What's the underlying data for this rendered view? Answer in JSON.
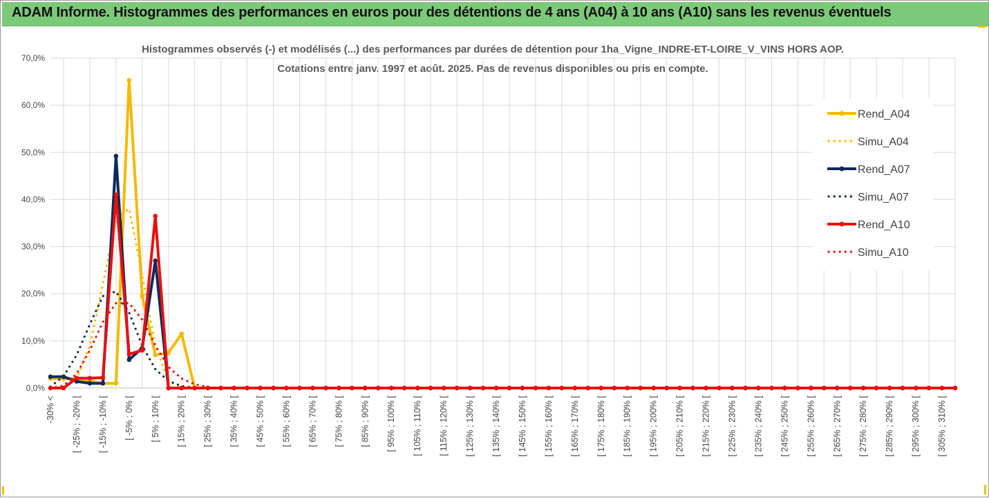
{
  "banner": {
    "title": "ADAM Informe. Histogrammes des performances en euros pour des détentions de 4 ans (A04) à 10 ans (A10) sans les revenus éventuels"
  },
  "colors": {
    "banner": "#7dc97a",
    "A04": "#f5b800",
    "A07": "#0d2a5c",
    "A10": "#e8100f",
    "grid": "#d9d9d9"
  },
  "chart_data": {
    "type": "line",
    "title": "Histogrammes observés (-) et modélisés (...) des performances par durées de détention pour 1ha_Vigne_INDRE-ET-LOIRE_V_VINS HORS AOP.",
    "subtitle": "Cotations entre janv. 1997 et août. 2025. Pas de revenus disponibles ou pris en compte.",
    "ylim": [
      0,
      70
    ],
    "y_tick_values": [
      0,
      10,
      20,
      30,
      40,
      50,
      60,
      70
    ],
    "y_tick_labels": [
      "0,0%",
      "10,0%",
      "20,0%",
      "30,0%",
      "40,0%",
      "50,0%",
      "60,0%",
      "70,0%"
    ],
    "grid": true,
    "legend_position": "right",
    "x_tick_labels": [
      "-30% <",
      "[ -25% ; -20% [",
      "[ -15% ; -10% [",
      "[ -5% ; 0% [",
      "[ 5% ; 10% [",
      "[ 15% ; 20% [",
      "[ 25% ; 30% [",
      "[ 35% ; 40% [",
      "[ 45% ; 50% [",
      "[ 55% ; 60% [",
      "[ 65% ; 70% [",
      "[ 75% ; 80% [",
      "[ 85% ; 90% [",
      "[ 95% ; 100% [",
      "[ 105% ; 110% [",
      "[ 115% ; 120% [",
      "[ 125% ; 130% [",
      "[ 135% ; 140% [",
      "[ 145% ; 150% [",
      "[ 155% ; 160% [",
      "[ 165% ; 170% [",
      "[ 175% ; 180% [",
      "[ 185% ; 190% [",
      "[ 195% ; 200% [",
      "[ 205% ; 210% [",
      "[ 215% ; 220% [",
      "[ 225% ; 230% [",
      "[ 235% ; 240% [",
      "[ 245% ; 250% [",
      "[ 255% ; 260% [",
      "[ 265% ; 270% [",
      "[ 275% ; 280% [",
      "[ 285% ; 290% [",
      "[ 295% ; 300% [",
      "[ 305% ; 310% ["
    ],
    "n_bins": 70,
    "series": [
      {
        "name": "Rend_A04",
        "style": "solid",
        "color": "#f5b800",
        "points": [
          [
            0,
            2.0
          ],
          [
            1,
            2.0
          ],
          [
            2,
            2.0
          ],
          [
            3,
            1.5
          ],
          [
            4,
            1.0
          ],
          [
            5,
            1.0
          ],
          [
            6,
            65.3
          ],
          [
            7,
            19.5
          ],
          [
            8,
            7.0
          ],
          [
            9,
            7.5
          ],
          [
            10,
            11.5
          ],
          [
            11,
            0.0
          ]
        ]
      },
      {
        "name": "Simu_A04",
        "style": "dotted",
        "color": "#f5b800",
        "points": [
          [
            0,
            0.0
          ],
          [
            1,
            0.3
          ],
          [
            2,
            2.0
          ],
          [
            3,
            9.0
          ],
          [
            4,
            22.0
          ],
          [
            5,
            36.0
          ],
          [
            6,
            38.0
          ],
          [
            7,
            24.0
          ],
          [
            8,
            9.0
          ],
          [
            9,
            1.5
          ],
          [
            10,
            0.1
          ],
          [
            11,
            0.0
          ]
        ]
      },
      {
        "name": "Rend_A07",
        "style": "solid",
        "color": "#0d2a5c",
        "points": [
          [
            0,
            2.4
          ],
          [
            1,
            2.4
          ],
          [
            2,
            1.4
          ],
          [
            3,
            1.0
          ],
          [
            4,
            1.0
          ],
          [
            5,
            49.2
          ],
          [
            6,
            6.0
          ],
          [
            7,
            8.5
          ],
          [
            8,
            27.0
          ],
          [
            9,
            0.0
          ]
        ]
      },
      {
        "name": "Simu_A07",
        "style": "dotted",
        "color": "#0d2a5c",
        "points": [
          [
            0,
            0.3
          ],
          [
            1,
            2.5
          ],
          [
            2,
            7.0
          ],
          [
            3,
            13.5
          ],
          [
            4,
            19.5
          ],
          [
            5,
            20.5
          ],
          [
            6,
            16.0
          ],
          [
            7,
            9.0
          ],
          [
            8,
            4.0
          ],
          [
            9,
            1.5
          ],
          [
            10,
            0.4
          ],
          [
            11,
            0.1
          ],
          [
            12,
            0.0
          ]
        ]
      },
      {
        "name": "Rend_A10",
        "style": "solid",
        "color": "#e8100f",
        "points": [
          [
            0,
            0.0
          ],
          [
            1,
            0.0
          ],
          [
            2,
            2.1
          ],
          [
            3,
            2.1
          ],
          [
            4,
            2.2
          ],
          [
            5,
            41.0
          ],
          [
            6,
            7.2
          ],
          [
            7,
            8.0
          ],
          [
            8,
            36.5
          ],
          [
            9,
            0.0
          ]
        ]
      },
      {
        "name": "Simu_A10",
        "style": "dotted",
        "color": "#e8100f",
        "points": [
          [
            0,
            0.0
          ],
          [
            1,
            0.5
          ],
          [
            2,
            3.0
          ],
          [
            3,
            8.0
          ],
          [
            4,
            14.0
          ],
          [
            5,
            18.0
          ],
          [
            6,
            18.0
          ],
          [
            7,
            14.5
          ],
          [
            8,
            9.0
          ],
          [
            9,
            4.5
          ],
          [
            10,
            2.0
          ],
          [
            11,
            0.8
          ],
          [
            12,
            0.2
          ],
          [
            13,
            0.0
          ]
        ]
      }
    ]
  }
}
